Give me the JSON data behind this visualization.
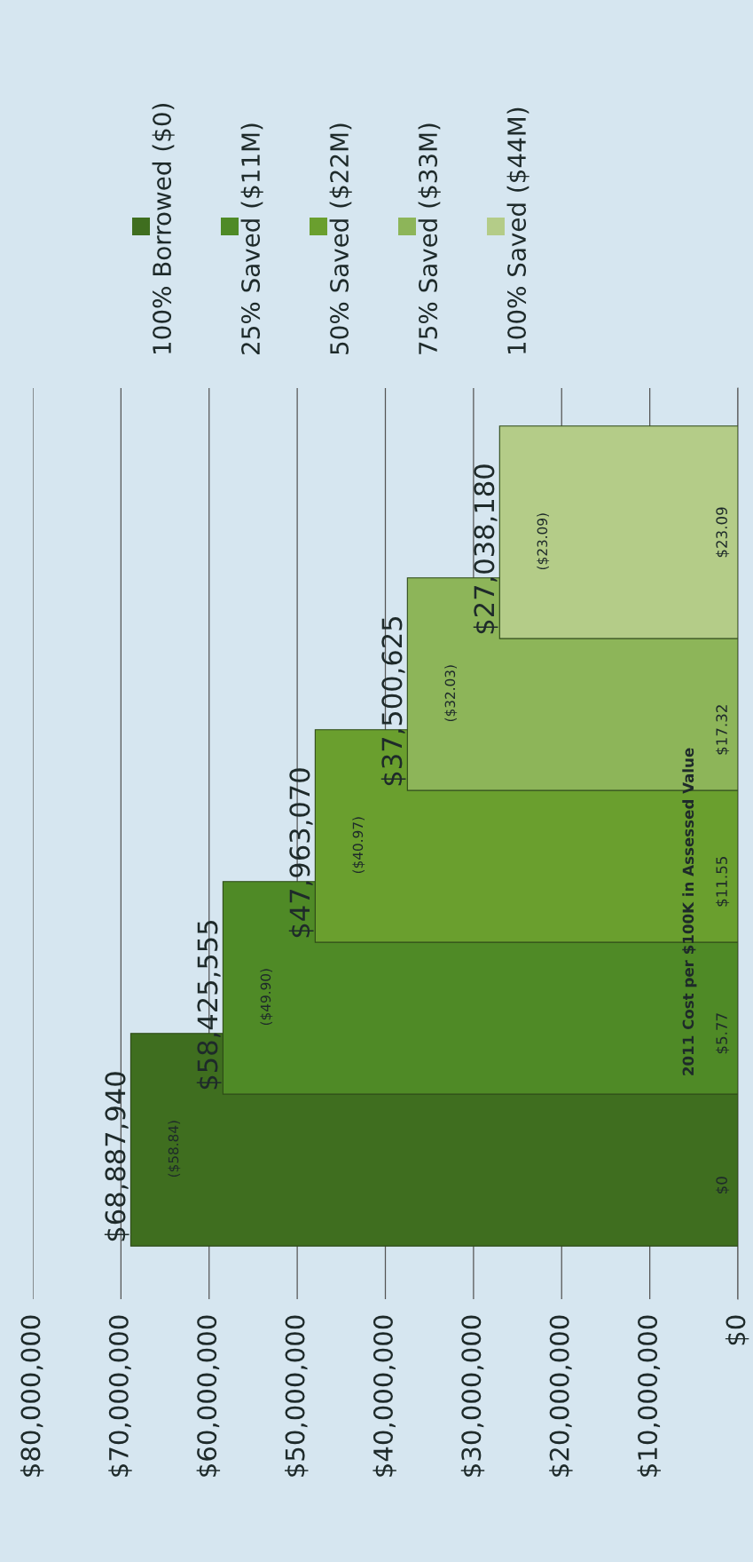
{
  "chart_data": {
    "type": "bar",
    "orientation": "horizontal",
    "categories": [
      null,
      null,
      null,
      null,
      null
    ],
    "series": [
      {
        "name": "100% Borrowed ($0)",
        "color": "#3f6e1f",
        "values": [
          null,
          null,
          null,
          null,
          68887940
        ],
        "value_labels": [
          null,
          null,
          null,
          null,
          "$68,887,940\n($58.84)"
        ]
      },
      {
        "name": "25% Saved ($11M)",
        "color": "#4f8a26",
        "values": [
          null,
          null,
          null,
          58425555,
          null
        ],
        "value_labels": [
          null,
          null,
          null,
          "$58,425,555\n($49.90)",
          null
        ]
      },
      {
        "name": "50% Saved ($22M)",
        "color": "#6a9f2e",
        "values": [
          null,
          null,
          47963070,
          null,
          null
        ],
        "value_labels": [
          null,
          null,
          "$47,963,070\n($40.97)",
          null,
          null
        ]
      },
      {
        "name": "75% Saved ($33M)",
        "color": "#8db559",
        "values": [
          null,
          37500625,
          null,
          null,
          null
        ],
        "value_labels": [
          null,
          "$37,500,625\n($32.03)",
          null,
          null,
          null
        ]
      },
      {
        "name": "100% Saved ($44M)",
        "color": "#b4cc88",
        "values": [
          27038180,
          null,
          null,
          null,
          null
        ],
        "value_labels": [
          "$27,038,180\n($23.09)",
          null,
          null,
          null,
          null
        ]
      }
    ],
    "xlim": [
      80000000,
      0
    ],
    "xticks": [
      {
        "value": 80000000,
        "label": "$80,000,000"
      },
      {
        "value": 70000000,
        "label": "$70,000,000"
      },
      {
        "value": 60000000,
        "label": "$60,000,000"
      },
      {
        "value": 50000000,
        "label": "$50,000,000"
      },
      {
        "value": 40000000,
        "label": "$40,000,000"
      },
      {
        "value": 30000000,
        "label": "$30,000,000"
      },
      {
        "value": 20000000,
        "label": "$20,000,000"
      },
      {
        "value": 10000000,
        "label": "$10,000,000"
      },
      {
        "value": 0,
        "label": "$0"
      }
    ],
    "grid": "x",
    "legend": "top",
    "annotations": [
      "2011 Cost per $100K in Assessed Value",
      "$23.09",
      "$17.32",
      "$11.55",
      "$5.77",
      "$0"
    ]
  }
}
